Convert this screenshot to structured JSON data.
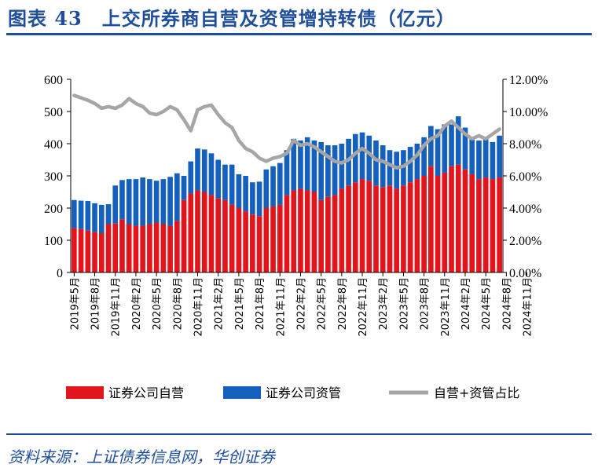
{
  "header": {
    "title": "图表 43　上交所券商自营及资管增持转债（亿元）"
  },
  "footer": {
    "source": "资料来源：上证债券信息网，华创证券"
  },
  "colors": {
    "proprietary": "#e2141c",
    "asset_mgmt": "#1560bd",
    "ratio": "#a6a6a6",
    "title": "#1f4e9c"
  },
  "chart_data": {
    "type": "bar",
    "stacked": true,
    "x_labels": [
      "2019年5月",
      "2019年8月",
      "2019年11月",
      "2020年2月",
      "2020年5月",
      "2020年8月",
      "2020年11月",
      "2021年2月",
      "2021年5月",
      "2021年8月",
      "2021年11月",
      "2022年2月",
      "2022年5月",
      "2022年8月",
      "2022年11月",
      "2023年2月",
      "2023年5月",
      "2023年8月",
      "2023年11月",
      "2024年2月",
      "2024年5月",
      "2024年8月",
      "2024年11月"
    ],
    "y_left": {
      "ticks": [
        "0",
        "100",
        "200",
        "300",
        "400",
        "500",
        "600"
      ],
      "min": 0,
      "max": 600
    },
    "y_right": {
      "ticks": [
        "0.00%",
        "2.00%",
        "4.00%",
        "6.00%",
        "8.00%",
        "10.00%",
        "12.00%"
      ],
      "min": 0,
      "max": 12
    },
    "series": [
      {
        "name": "证券公司自营",
        "kind": "bar",
        "values": [
          138,
          135,
          130,
          125,
          122,
          150,
          152,
          165,
          150,
          145,
          145,
          150,
          155,
          150,
          145,
          160,
          225,
          245,
          255,
          250,
          240,
          230,
          225,
          210,
          200,
          190,
          180,
          175,
          200,
          205,
          210,
          240,
          255,
          260,
          255,
          250,
          225,
          235,
          240,
          260,
          270,
          280,
          290,
          285,
          270,
          265,
          270,
          260,
          270,
          280,
          290,
          300,
          330,
          300,
          310,
          330,
          335,
          320,
          305,
          290,
          295,
          290,
          295
        ]
      },
      {
        "name": "证券公司资管",
        "kind": "bar",
        "values": [
          87,
          88,
          92,
          90,
          88,
          62,
          118,
          122,
          140,
          145,
          150,
          140,
          130,
          140,
          152,
          148,
          75,
          100,
          130,
          132,
          130,
          120,
          110,
          125,
          105,
          110,
          100,
          107,
          120,
          125,
          130,
          140,
          160,
          150,
          165,
          160,
          180,
          160,
          155,
          140,
          145,
          150,
          145,
          140,
          140,
          130,
          110,
          115,
          110,
          110,
          110,
          120,
          125,
          145,
          150,
          130,
          150,
          130,
          115,
          120,
          120,
          115,
          130
        ]
      },
      {
        "name": "自营+资管占比",
        "kind": "line",
        "axis": "right",
        "values": [
          11.0,
          10.85,
          10.7,
          10.5,
          10.2,
          10.3,
          10.2,
          10.4,
          10.8,
          10.5,
          10.3,
          9.9,
          9.8,
          10.0,
          10.3,
          10.1,
          9.5,
          8.8,
          10.1,
          10.3,
          10.4,
          9.8,
          9.3,
          9.0,
          8.2,
          7.7,
          7.5,
          7.1,
          6.9,
          7.1,
          7.2,
          7.4,
          8.2,
          7.9,
          8.0,
          7.8,
          7.5,
          7.2,
          6.9,
          6.8,
          7.0,
          7.4,
          7.7,
          7.4,
          7.0,
          6.9,
          6.7,
          6.5,
          6.6,
          6.9,
          7.3,
          7.9,
          8.3,
          8.5,
          9.1,
          9.4,
          9.0,
          8.6,
          8.3,
          8.5,
          8.3,
          8.6,
          8.9
        ]
      }
    ],
    "legend_position": "bottom"
  }
}
